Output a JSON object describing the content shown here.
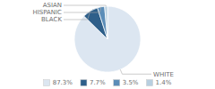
{
  "chart_data": {
    "type": "pie",
    "categories": [
      "WHITE",
      "BLACK",
      "HISPANIC",
      "ASIAN"
    ],
    "values": [
      87.3,
      7.7,
      3.5,
      1.4
    ],
    "value_labels": [
      "87.3%",
      "7.7%",
      "3.5%",
      "1.4%"
    ],
    "colors": [
      "#dce6f1",
      "#2e5f8a",
      "#5b8db8",
      "#b8cfe0"
    ],
    "legend": "bottom"
  }
}
